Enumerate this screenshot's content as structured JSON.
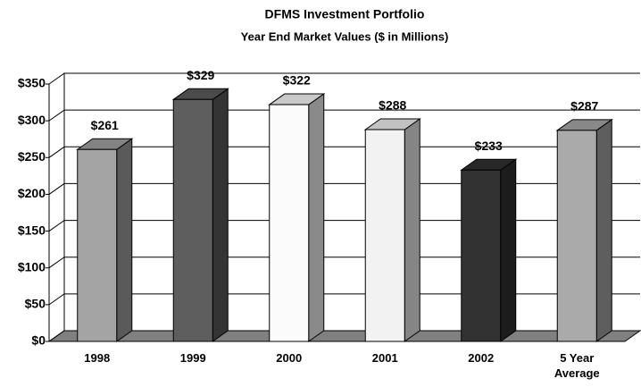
{
  "chart_data": {
    "type": "bar3d",
    "title": "DFMS Investment Portfolio",
    "subtitle": "Year End Market Values ($ in Millions)",
    "categories": [
      "1998",
      "1999",
      "2000",
      "2001",
      "2002",
      "5 Year Average"
    ],
    "values": [
      261,
      329,
      322,
      288,
      233,
      287
    ],
    "value_labels": [
      "$261",
      "$329",
      "$322",
      "$288",
      "$233",
      "$287"
    ],
    "colors": [
      "#a4a4a4",
      "#5e5e5e",
      "#fbfbfb",
      "#f2f2f2",
      "#323232",
      "#aaaaaa"
    ],
    "ylim": [
      0,
      350
    ],
    "yticks": [
      {
        "value": 0,
        "label": "$0"
      },
      {
        "value": 50,
        "label": "$50"
      },
      {
        "value": 100,
        "label": "$100"
      },
      {
        "value": 150,
        "label": "$150"
      },
      {
        "value": 200,
        "label": "$200"
      },
      {
        "value": 250,
        "label": "$250"
      },
      {
        "value": 300,
        "label": "$300"
      },
      {
        "value": 350,
        "label": "$350"
      }
    ],
    "grid": true
  }
}
